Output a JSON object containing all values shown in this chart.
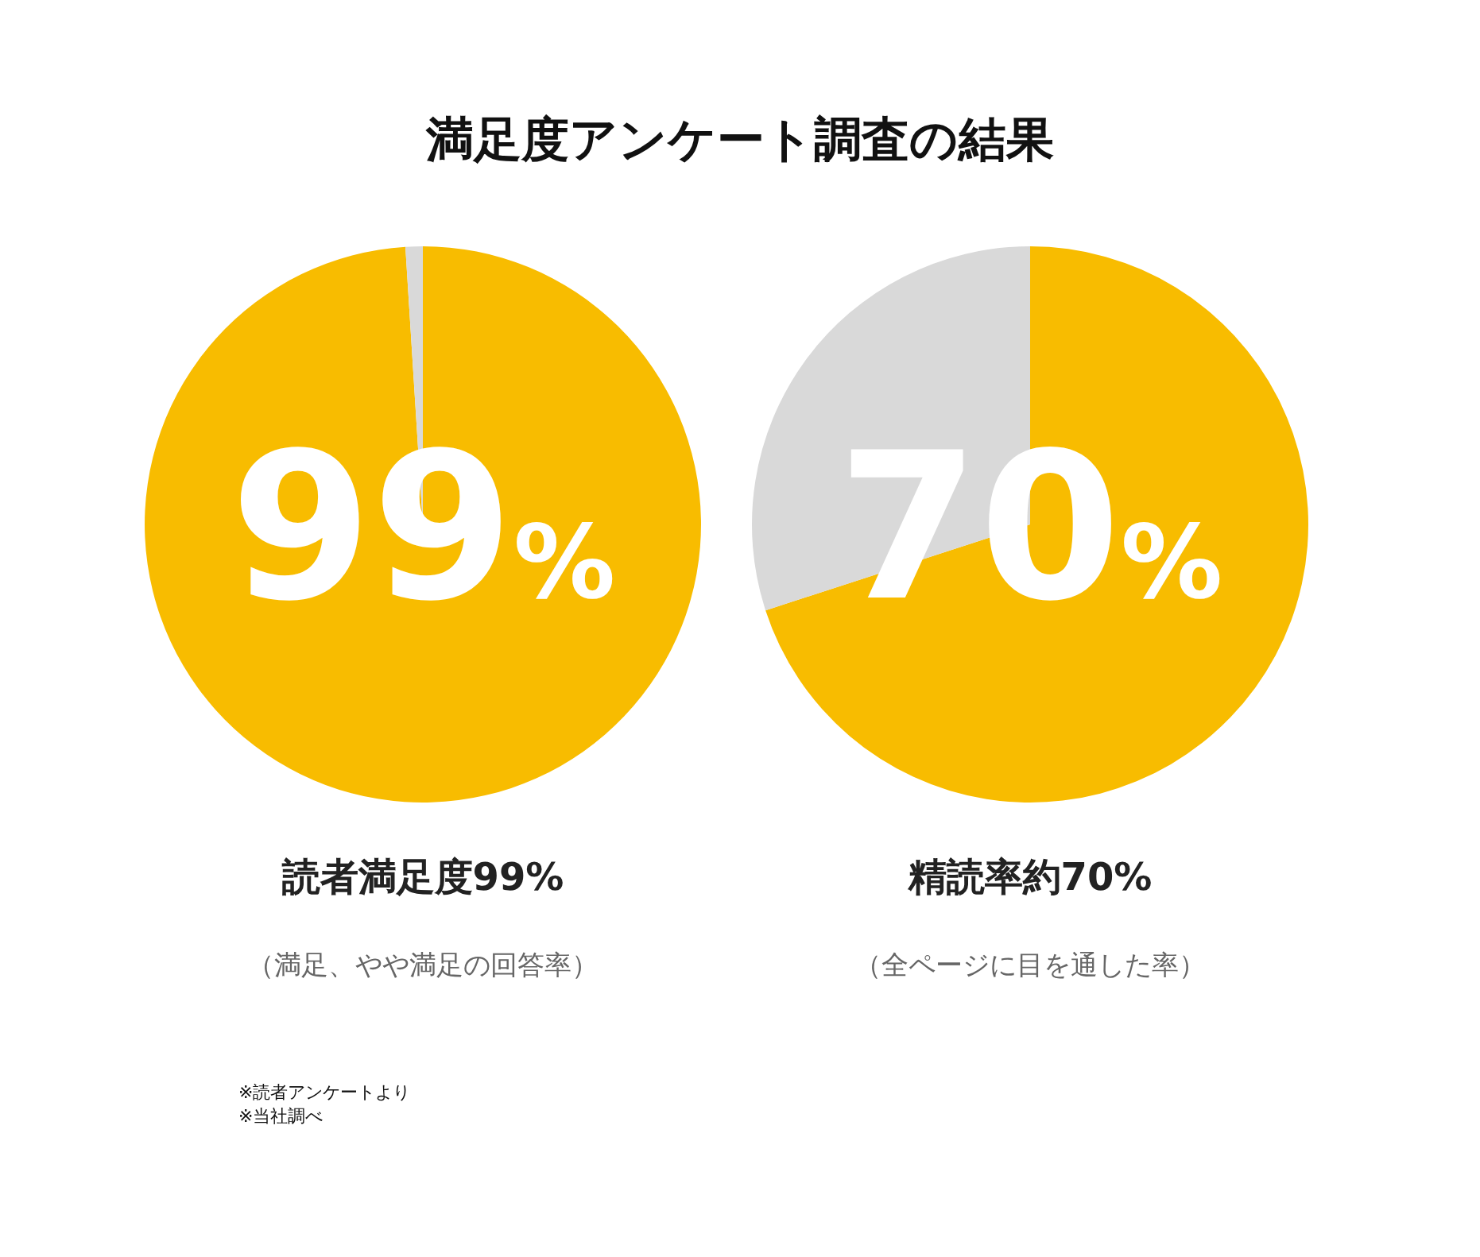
{
  "chart_data": [
    {
      "type": "other",
      "title": "満足度アンケート調査の結果"
    },
    {
      "type": "pie",
      "title": "読者満足度99%",
      "subtitle": "（満足、やや満足の回答率）",
      "categories": [
        null,
        null
      ],
      "values": [
        99,
        1
      ],
      "colors": [
        "#f8bc00",
        "#d9d9d9"
      ],
      "value_labels": [
        "99%",
        null
      ]
    },
    {
      "type": "pie",
      "title": "精読率約70%",
      "subtitle": "（全ページに目を通した率）",
      "categories": [
        null,
        null
      ],
      "values": [
        70,
        30
      ],
      "colors": [
        "#f8bc00",
        "#d9d9d9"
      ],
      "value_labels": [
        "70%",
        null
      ]
    },
    {
      "type": "other",
      "annotations": [
        "※読者アンケートより",
        "※当社調べ"
      ]
    }
  ]
}
